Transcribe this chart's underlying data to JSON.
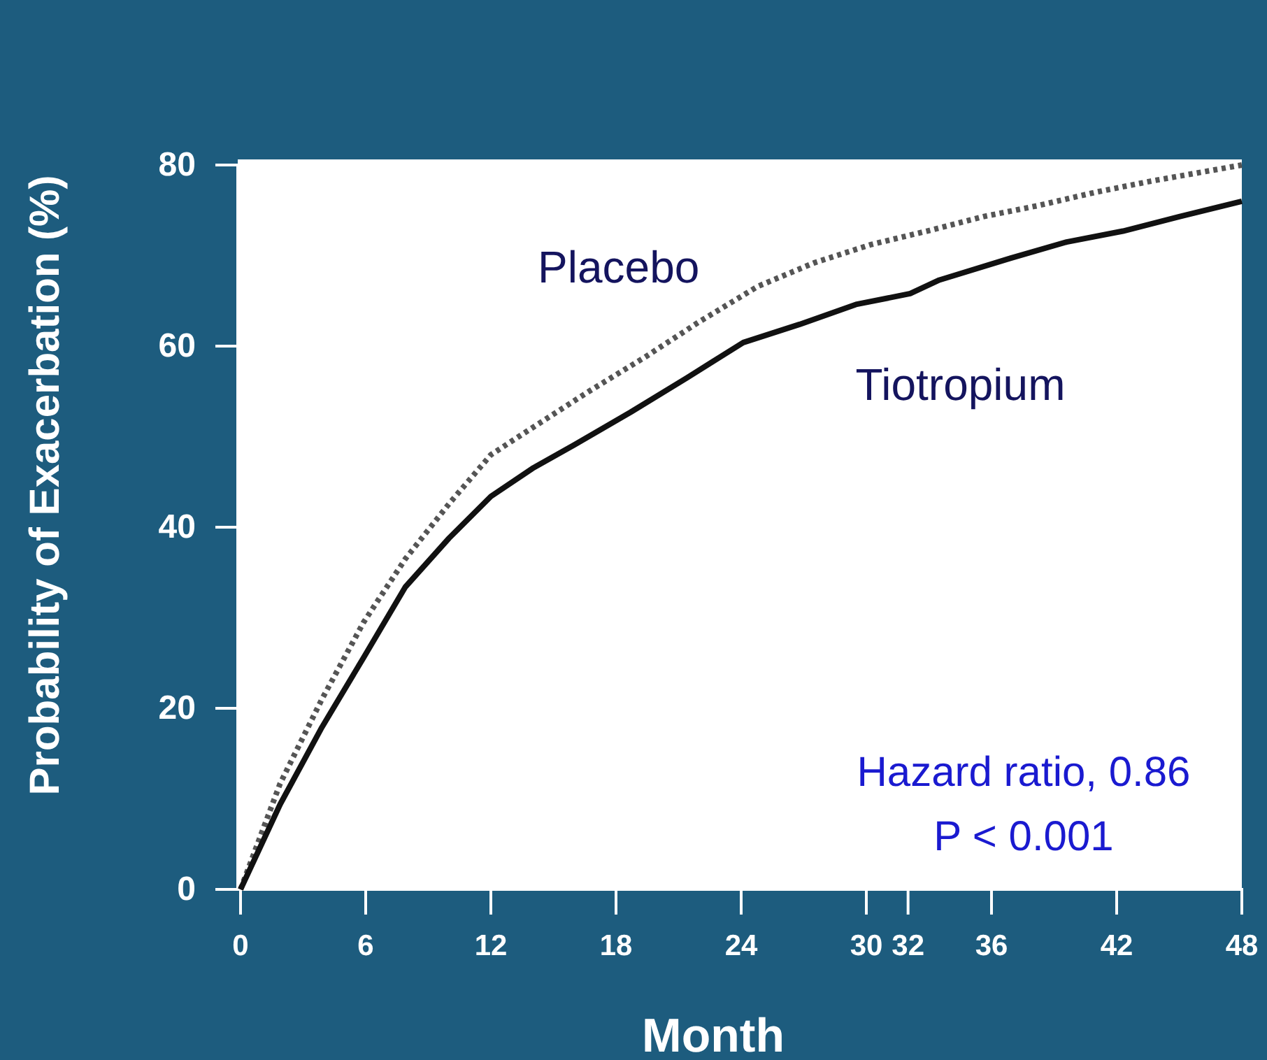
{
  "chart_data": {
    "type": "line",
    "xlabel": "Month",
    "ylabel": "Probability of Exacerbation (%)",
    "xlim": [
      0,
      48
    ],
    "ylim": [
      0,
      80
    ],
    "xticks": [
      0,
      6,
      12,
      18,
      24,
      30,
      32,
      36,
      42,
      48
    ],
    "yticks": [
      0,
      20,
      40,
      60,
      80
    ],
    "grid": false,
    "marker": "none",
    "annotations": [
      "Hazard ratio, 0.86",
      "P < 0.001"
    ],
    "series": [
      {
        "name": "Placebo",
        "color": "#555555",
        "line_style": "dotted",
        "x": [
          0,
          1.9,
          3.9,
          5.9,
          7.9,
          10,
          12,
          14,
          16.7,
          19.4,
          22,
          24.8,
          27.5,
          30.2,
          32.9,
          35.6,
          38.2,
          41,
          43.6,
          48
        ],
        "values": [
          0,
          11.7,
          21,
          29.5,
          36.5,
          42.6,
          48,
          51,
          55,
          58.8,
          62.7,
          66.6,
          69.2,
          71.2,
          72.7,
          74.3,
          75.5,
          77,
          78.2,
          80
        ]
      },
      {
        "name": "Tiotropium",
        "color": "#111111",
        "line_style": "solid",
        "x": [
          0,
          1.9,
          3.9,
          5.9,
          7.9,
          10,
          12,
          14,
          16,
          18.7,
          21.4,
          24.1,
          26.8,
          29.5,
          32.1,
          33.5,
          36.9,
          39.6,
          42.3,
          45,
          48
        ],
        "values": [
          0,
          9.4,
          17.9,
          25.6,
          33.4,
          38.8,
          43.4,
          46.5,
          49.1,
          52.7,
          56.5,
          60.4,
          62.4,
          64.6,
          65.8,
          67.3,
          69.7,
          71.5,
          72.7,
          74.3,
          76
        ]
      }
    ]
  }
}
